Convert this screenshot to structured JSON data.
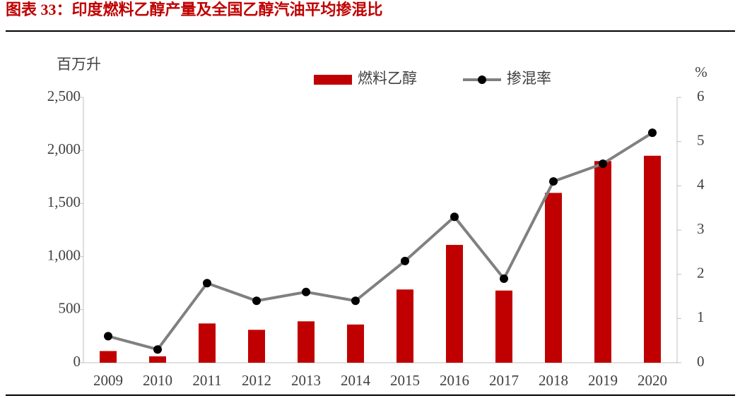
{
  "chart_data": {
    "type": "bar_line",
    "title": "图表 33：印度燃料乙醇产量及全国乙醇汽油平均掺混比",
    "y_label": "百万升",
    "y2_label": "%",
    "categories": [
      "2009",
      "2010",
      "2011",
      "2012",
      "2013",
      "2014",
      "2015",
      "2016",
      "2017",
      "2018",
      "2019",
      "2020"
    ],
    "series": [
      {
        "name": "燃料乙醇",
        "type": "bar",
        "color": "#c00000",
        "values": [
          110,
          60,
          370,
          310,
          390,
          360,
          690,
          1110,
          680,
          1600,
          1900,
          1950
        ]
      },
      {
        "name": "掺混率",
        "type": "line",
        "axis": "y2",
        "color": "#808080",
        "marker_color": "#000000",
        "values": [
          0.6,
          0.3,
          1.8,
          1.4,
          1.6,
          1.4,
          2.3,
          3.3,
          1.9,
          4.1,
          4.5,
          5.2
        ]
      }
    ],
    "ylim": [
      0,
      2500
    ],
    "yticks": [
      0,
      500,
      {
        "value": 1000,
        "label": "1,000"
      },
      {
        "value": 1500,
        "label": "1,500"
      },
      {
        "value": 2000,
        "label": "2,000"
      },
      {
        "value": 2500,
        "label": "2,500"
      }
    ],
    "y2lim": [
      0,
      6
    ],
    "y2ticks": [
      0,
      1,
      2,
      3,
      4,
      5,
      6
    ],
    "grid": false,
    "legend": "top"
  }
}
